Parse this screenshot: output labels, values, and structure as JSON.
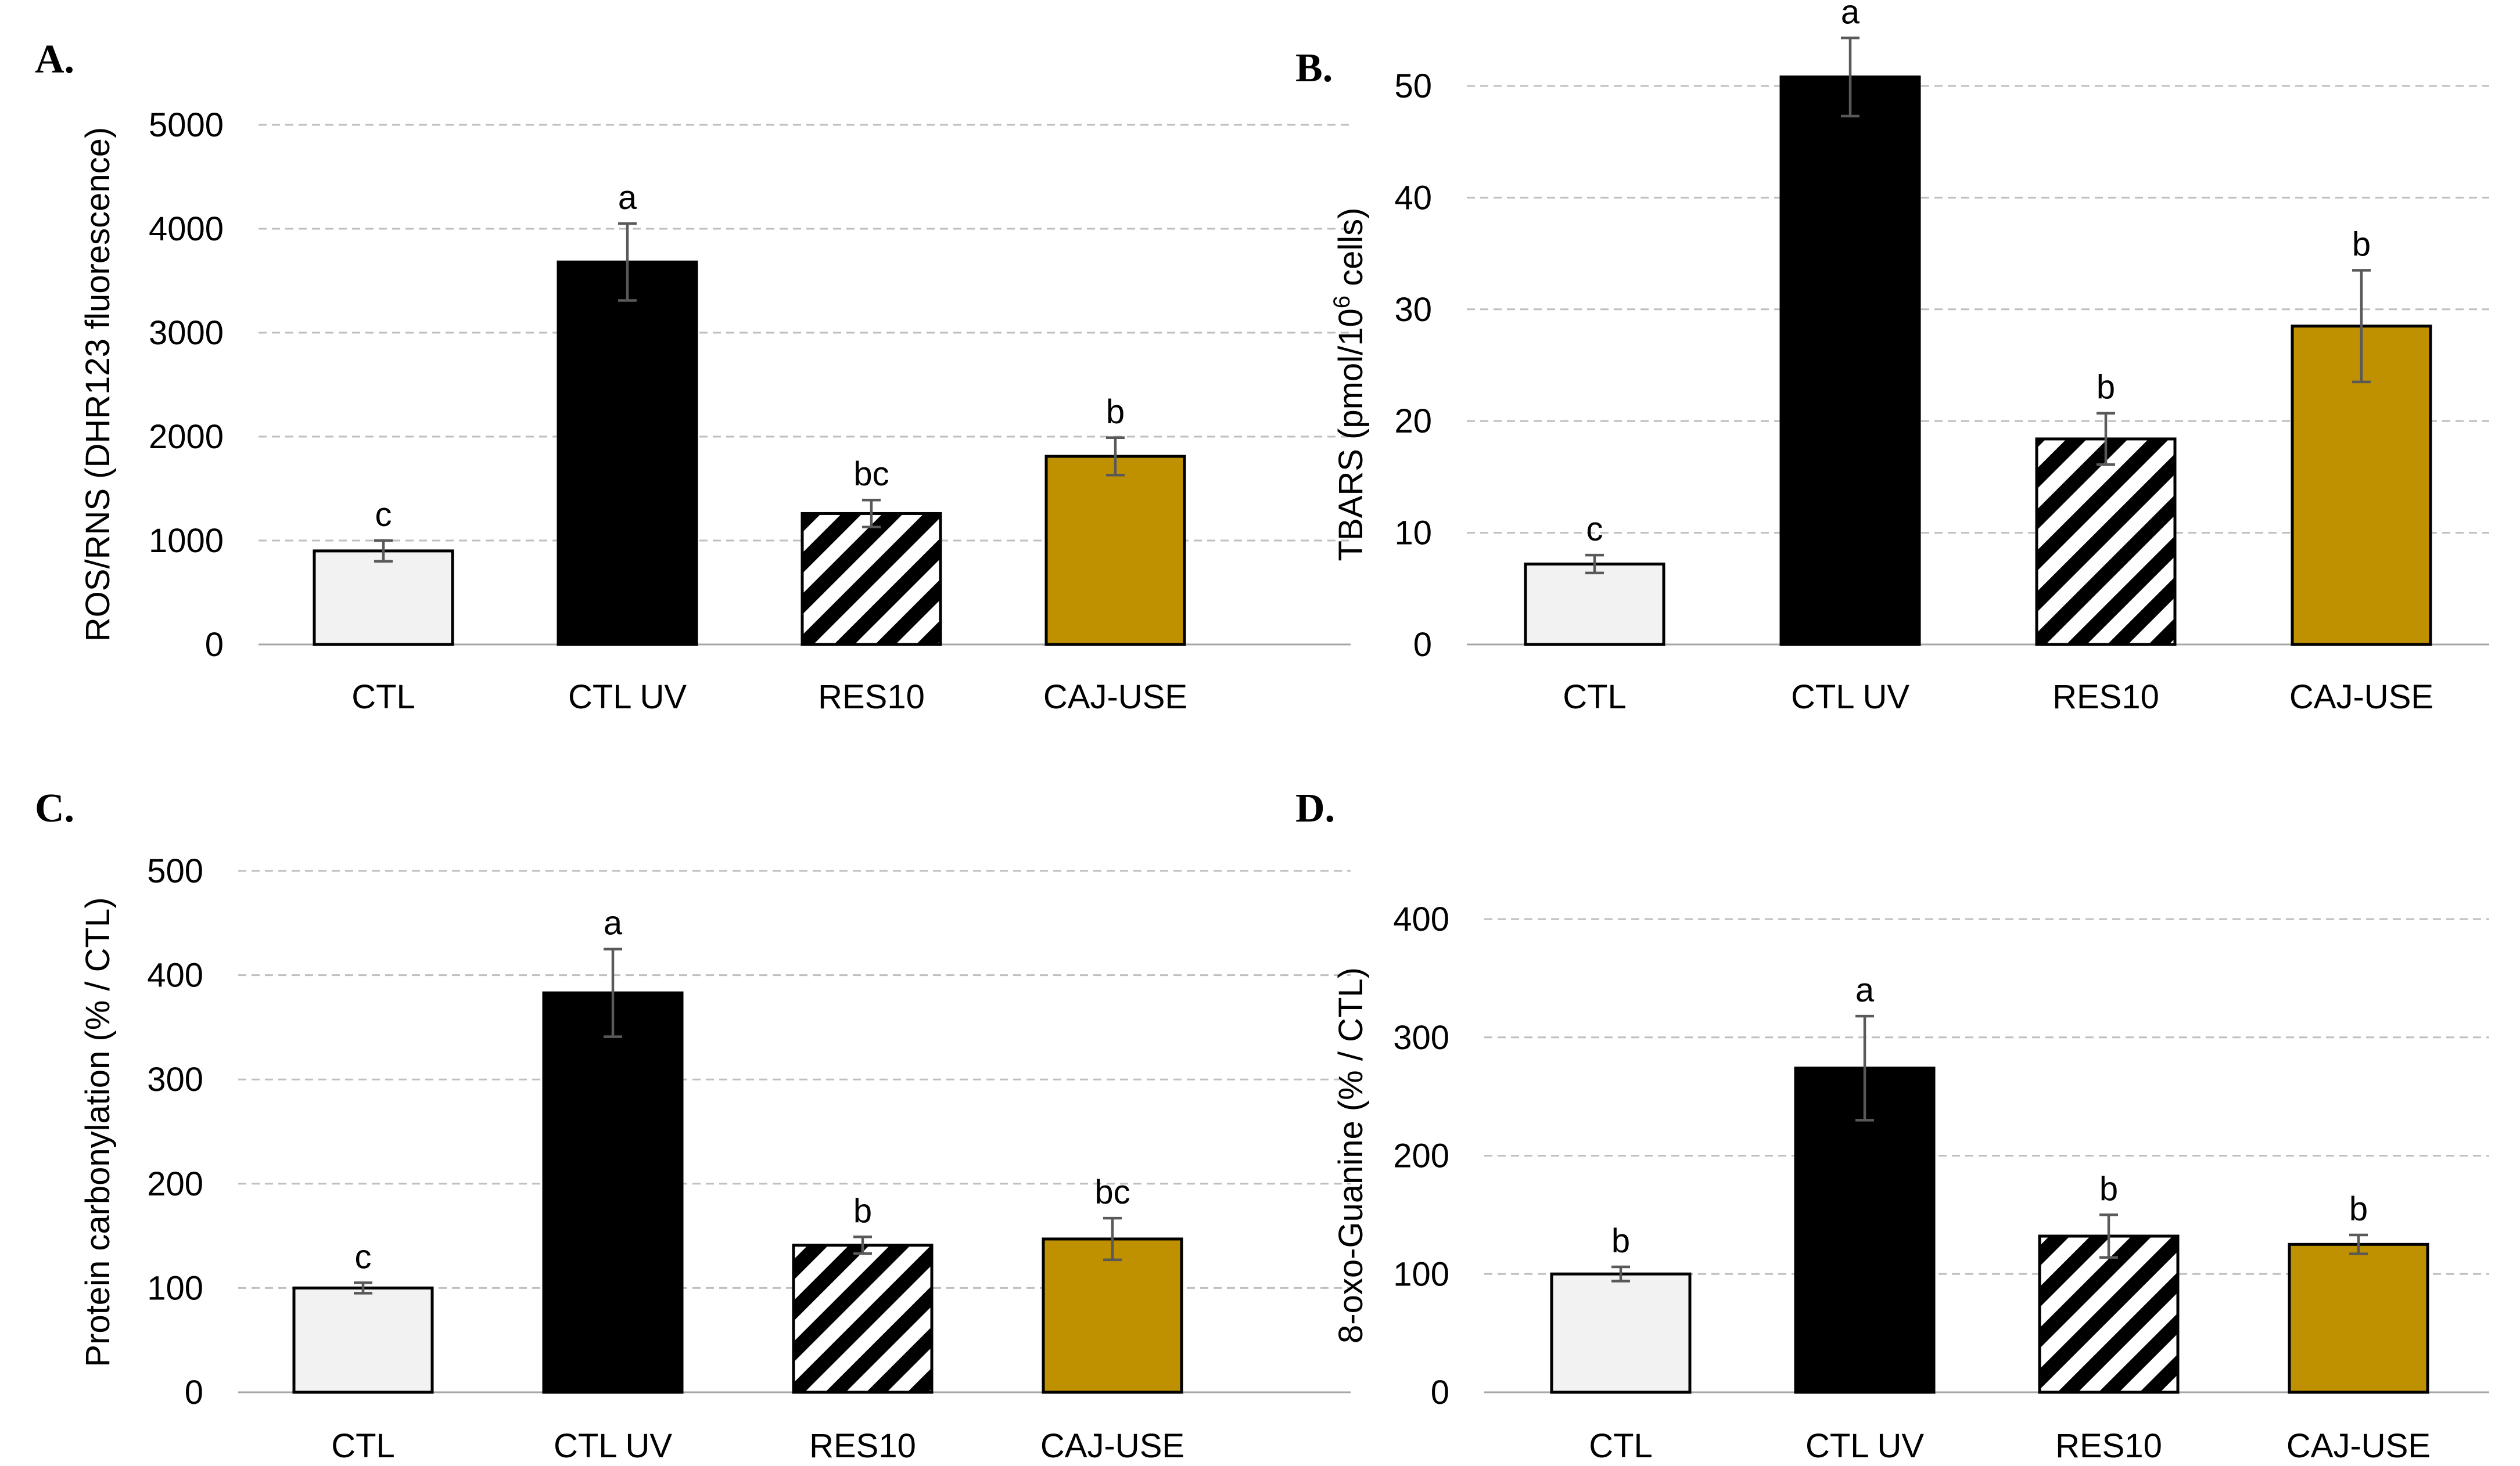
{
  "colors": {
    "ctl": "#f2f2f2",
    "ctl_uv": "#000000",
    "res10_stripe_dark": "#000000",
    "res10_stripe_light": "#ffffff",
    "caj_use": "#bf9000"
  },
  "chart_data": [
    {
      "type": "bar",
      "panel": "A.",
      "ylabel_main": "ROS/RNS",
      "ylabel_detail": " (DHR123 fluorescence)",
      "categories": [
        "CTL",
        "CTL UV",
        "RES10",
        "CAJ-USE"
      ],
      "values": [
        900,
        3680,
        1260,
        1810
      ],
      "errors": [
        100,
        370,
        130,
        180
      ],
      "significance": [
        "c",
        "a",
        "bc",
        "b"
      ],
      "ylim": [
        0,
        5000
      ],
      "yticks": [
        0,
        1000,
        2000,
        3000,
        4000,
        5000
      ],
      "grid": true
    },
    {
      "type": "bar",
      "panel": "B.",
      "ylabel_main": "TBARS",
      "ylabel_detail": " (pmol/10",
      "ylabel_sup": "6",
      "ylabel_tail": " cells)",
      "categories": [
        "CTL",
        "CTL UV",
        "RES10",
        "CAJ-USE"
      ],
      "values": [
        7.2,
        50.8,
        18.4,
        28.5
      ],
      "errors": [
        0.8,
        3.5,
        2.3,
        5.0
      ],
      "significance": [
        "c",
        "a",
        "b",
        "b"
      ],
      "ylim": [
        0,
        55
      ],
      "yticks": [
        0,
        10,
        20,
        30,
        40,
        50
      ],
      "grid": true
    },
    {
      "type": "bar",
      "panel": "C.",
      "ylabel_main": "Protein carbonylation (% / CTL)",
      "categories": [
        "CTL",
        "CTL UV",
        "RES10",
        "CAJ-USE"
      ],
      "values": [
        100,
        383,
        141,
        147
      ],
      "errors": [
        5,
        42,
        8,
        20
      ],
      "significance": [
        "c",
        "a",
        "b",
        "bc"
      ],
      "ylim": [
        0,
        500
      ],
      "yticks": [
        0,
        100,
        200,
        300,
        400,
        500
      ],
      "grid": true
    },
    {
      "type": "bar",
      "panel": "D.",
      "ylabel_main": "8-oxo-Guanine (% / CTL)",
      "categories": [
        "CTL",
        "CTL UV",
        "RES10",
        "CAJ-USE"
      ],
      "values": [
        100,
        274,
        132,
        125
      ],
      "errors": [
        6,
        44,
        18,
        8
      ],
      "significance": [
        "b",
        "a",
        "b",
        "b"
      ],
      "ylim": [
        0,
        400
      ],
      "yticks": [
        0,
        100,
        200,
        300,
        400
      ],
      "grid": true
    }
  ]
}
